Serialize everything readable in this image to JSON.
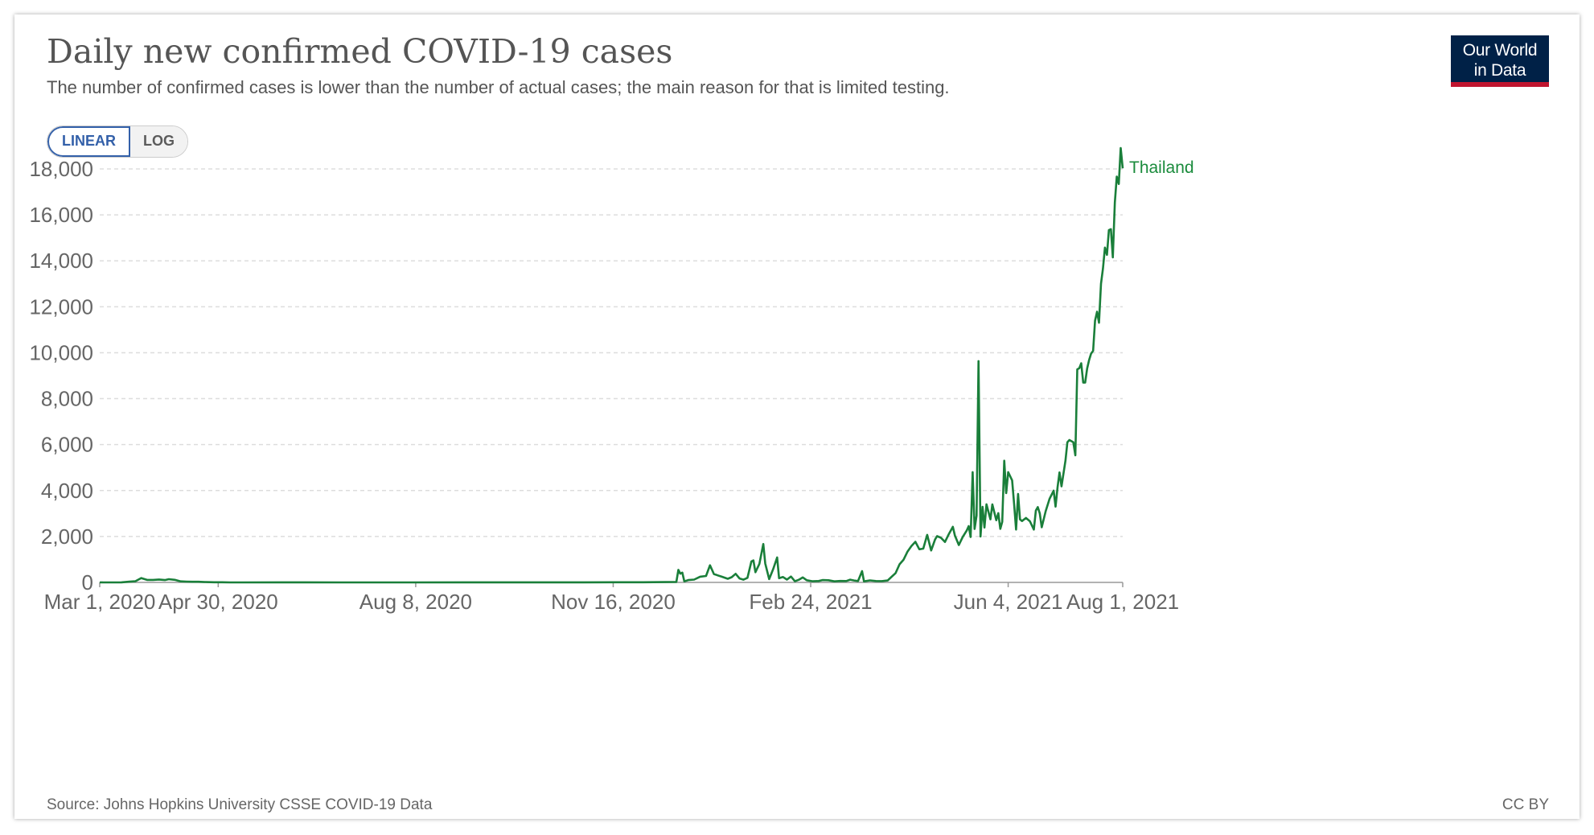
{
  "header": {
    "title": "Daily new confirmed COVID-19 cases",
    "subtitle": "The number of confirmed cases is lower than the number of actual cases; the main reason for that is limited testing."
  },
  "logo": {
    "line1": "Our World",
    "line2": "in Data"
  },
  "controls": {
    "linear_label": "LINEAR",
    "log_label": "LOG",
    "selected": "LINEAR"
  },
  "footer": {
    "source": "Source: Johns Hopkins University CSSE COVID-19 Data",
    "license": "CC BY"
  },
  "colors": {
    "series": "#1a7f3a",
    "logo_bg": "#002147",
    "logo_accent": "#c0152f",
    "toggle_active": "#3360a9"
  },
  "chart_data": {
    "type": "line",
    "title": "Daily new confirmed COVID-19 cases",
    "xlabel": "",
    "ylabel": "",
    "xlim": [
      "2020-03-01",
      "2021-08-01"
    ],
    "ylim": [
      0,
      18000
    ],
    "y_ticks": [
      0,
      2000,
      4000,
      6000,
      8000,
      10000,
      12000,
      14000,
      16000,
      18000
    ],
    "y_tick_labels": [
      "0",
      "2,000",
      "4,000",
      "6,000",
      "8,000",
      "10,000",
      "12,000",
      "14,000",
      "16,000",
      "18,000"
    ],
    "x_ticks": [
      "2020-03-01",
      "2020-04-30",
      "2020-08-08",
      "2020-11-16",
      "2021-02-24",
      "2021-06-04",
      "2021-08-01"
    ],
    "x_tick_labels": [
      "Mar 1, 2020",
      "Apr 30, 2020",
      "Aug 8, 2020",
      "Nov 16, 2020",
      "Feb 24, 2021",
      "Jun 4, 2021",
      "Aug 1, 2021"
    ],
    "grid": "horizontal dashed",
    "legend": "inline label at line end",
    "series": [
      {
        "name": "Thailand",
        "color": "#1a7f3a",
        "points": [
          [
            "2020-03-01",
            0
          ],
          [
            "2020-03-12",
            5
          ],
          [
            "2020-03-16",
            30
          ],
          [
            "2020-03-19",
            50
          ],
          [
            "2020-03-22",
            188
          ],
          [
            "2020-03-25",
            107
          ],
          [
            "2020-03-28",
            110
          ],
          [
            "2020-03-31",
            127
          ],
          [
            "2020-04-03",
            103
          ],
          [
            "2020-04-05",
            140
          ],
          [
            "2020-04-08",
            111
          ],
          [
            "2020-04-11",
            45
          ],
          [
            "2020-04-14",
            34
          ],
          [
            "2020-04-17",
            28
          ],
          [
            "2020-04-20",
            27
          ],
          [
            "2020-04-24",
            13
          ],
          [
            "2020-04-28",
            7
          ],
          [
            "2020-05-02",
            6
          ],
          [
            "2020-05-06",
            1
          ],
          [
            "2020-05-12",
            0
          ],
          [
            "2020-06-01",
            2
          ],
          [
            "2020-07-01",
            0
          ],
          [
            "2020-08-01",
            1
          ],
          [
            "2020-09-01",
            3
          ],
          [
            "2020-10-01",
            2
          ],
          [
            "2020-11-01",
            5
          ],
          [
            "2020-12-01",
            8
          ],
          [
            "2020-12-18",
            20
          ],
          [
            "2020-12-19",
            548
          ],
          [
            "2020-12-20",
            382
          ],
          [
            "2020-12-21",
            427
          ],
          [
            "2020-12-22",
            46
          ],
          [
            "2020-12-24",
            100
          ],
          [
            "2020-12-27",
            121
          ],
          [
            "2020-12-30",
            250
          ],
          [
            "2021-01-02",
            279
          ],
          [
            "2021-01-04",
            745
          ],
          [
            "2021-01-06",
            365
          ],
          [
            "2021-01-08",
            305
          ],
          [
            "2021-01-10",
            249
          ],
          [
            "2021-01-13",
            157
          ],
          [
            "2021-01-15",
            226
          ],
          [
            "2021-01-17",
            374
          ],
          [
            "2021-01-19",
            171
          ],
          [
            "2021-01-21",
            119
          ],
          [
            "2021-01-23",
            198
          ],
          [
            "2021-01-25",
            914
          ],
          [
            "2021-01-26",
            959
          ],
          [
            "2021-01-27",
            444
          ],
          [
            "2021-01-29",
            802
          ],
          [
            "2021-01-31",
            1672
          ],
          [
            "2021-02-01",
            828
          ],
          [
            "2021-02-03",
            143
          ],
          [
            "2021-02-05",
            583
          ],
          [
            "2021-02-07",
            1085
          ],
          [
            "2021-02-08",
            183
          ],
          [
            "2021-02-10",
            233
          ],
          [
            "2021-02-12",
            121
          ],
          [
            "2021-02-14",
            256
          ],
          [
            "2021-02-16",
            50
          ],
          [
            "2021-02-18",
            114
          ],
          [
            "2021-02-20",
            218
          ],
          [
            "2021-02-22",
            93
          ],
          [
            "2021-02-25",
            49
          ],
          [
            "2021-02-28",
            60
          ],
          [
            "2021-03-02",
            102
          ],
          [
            "2021-03-05",
            94
          ],
          [
            "2021-03-08",
            45
          ],
          [
            "2021-03-11",
            62
          ],
          [
            "2021-03-14",
            59
          ],
          [
            "2021-03-16",
            119
          ],
          [
            "2021-03-18",
            85
          ],
          [
            "2021-03-20",
            59
          ],
          [
            "2021-03-22",
            490
          ],
          [
            "2021-03-23",
            46
          ],
          [
            "2021-03-26",
            88
          ],
          [
            "2021-03-29",
            59
          ],
          [
            "2021-04-01",
            55
          ],
          [
            "2021-04-04",
            84
          ],
          [
            "2021-04-06",
            250
          ],
          [
            "2021-04-08",
            405
          ],
          [
            "2021-04-10",
            789
          ],
          [
            "2021-04-12",
            985
          ],
          [
            "2021-04-14",
            1335
          ],
          [
            "2021-04-16",
            1582
          ],
          [
            "2021-04-18",
            1767
          ],
          [
            "2021-04-20",
            1443
          ],
          [
            "2021-04-22",
            1470
          ],
          [
            "2021-04-24",
            2070
          ],
          [
            "2021-04-26",
            1390
          ],
          [
            "2021-04-28",
            1871
          ],
          [
            "2021-04-29",
            2012
          ],
          [
            "2021-05-01",
            1940
          ],
          [
            "2021-05-03",
            1763
          ],
          [
            "2021-05-05",
            2112
          ],
          [
            "2021-05-07",
            2419
          ],
          [
            "2021-05-08",
            2044
          ],
          [
            "2021-05-10",
            1630
          ],
          [
            "2021-05-12",
            1983
          ],
          [
            "2021-05-14",
            2256
          ],
          [
            "2021-05-15",
            2452
          ],
          [
            "2021-05-16",
            1980
          ],
          [
            "2021-05-17",
            4801
          ],
          [
            "2021-05-18",
            2326
          ],
          [
            "2021-05-19",
            2910
          ],
          [
            "2021-05-20",
            9635
          ],
          [
            "2021-05-21",
            2000
          ],
          [
            "2021-05-22",
            3290
          ],
          [
            "2021-05-23",
            2390
          ],
          [
            "2021-05-24",
            3400
          ],
          [
            "2021-05-26",
            2744
          ],
          [
            "2021-05-27",
            3394
          ],
          [
            "2021-05-29",
            2706
          ],
          [
            "2021-05-30",
            3016
          ],
          [
            "2021-05-31",
            2333
          ],
          [
            "2021-06-01",
            2640
          ],
          [
            "2021-06-02",
            5300
          ],
          [
            "2021-06-03",
            3886
          ],
          [
            "2021-06-04",
            4800
          ],
          [
            "2021-06-06",
            4440
          ],
          [
            "2021-06-07",
            3440
          ],
          [
            "2021-06-08",
            2300
          ],
          [
            "2021-06-09",
            3850
          ],
          [
            "2021-06-10",
            2744
          ],
          [
            "2021-06-11",
            2671
          ],
          [
            "2021-06-13",
            2804
          ],
          [
            "2021-06-15",
            2662
          ],
          [
            "2021-06-17",
            2300
          ],
          [
            "2021-06-18",
            3129
          ],
          [
            "2021-06-19",
            3277
          ],
          [
            "2021-06-20",
            3000
          ],
          [
            "2021-06-21",
            2400
          ],
          [
            "2021-06-23",
            3100
          ],
          [
            "2021-06-25",
            3644
          ],
          [
            "2021-06-27",
            3995
          ],
          [
            "2021-06-28",
            3300
          ],
          [
            "2021-06-29",
            4150
          ],
          [
            "2021-06-30",
            4786
          ],
          [
            "2021-07-01",
            4180
          ],
          [
            "2021-07-03",
            5300
          ],
          [
            "2021-07-04",
            6100
          ],
          [
            "2021-07-05",
            6200
          ],
          [
            "2021-07-07",
            6100
          ],
          [
            "2021-07-08",
            5533
          ],
          [
            "2021-07-09",
            9276
          ],
          [
            "2021-07-10",
            9326
          ],
          [
            "2021-07-11",
            9539
          ],
          [
            "2021-07-12",
            8700
          ],
          [
            "2021-07-13",
            8700
          ],
          [
            "2021-07-14",
            9317
          ],
          [
            "2021-07-15",
            9692
          ],
          [
            "2021-07-16",
            9962
          ],
          [
            "2021-07-17",
            10082
          ],
          [
            "2021-07-18",
            11397
          ],
          [
            "2021-07-19",
            11784
          ],
          [
            "2021-07-20",
            11305
          ],
          [
            "2021-07-21",
            13002
          ],
          [
            "2021-07-22",
            13655
          ],
          [
            "2021-07-23",
            14575
          ],
          [
            "2021-07-24",
            14260
          ],
          [
            "2021-07-25",
            15335
          ],
          [
            "2021-07-26",
            15376
          ],
          [
            "2021-07-27",
            14150
          ],
          [
            "2021-07-28",
            16533
          ],
          [
            "2021-07-29",
            17669
          ],
          [
            "2021-07-30",
            17345
          ],
          [
            "2021-07-31",
            18912
          ],
          [
            "2021-08-01",
            18027
          ]
        ]
      }
    ]
  }
}
